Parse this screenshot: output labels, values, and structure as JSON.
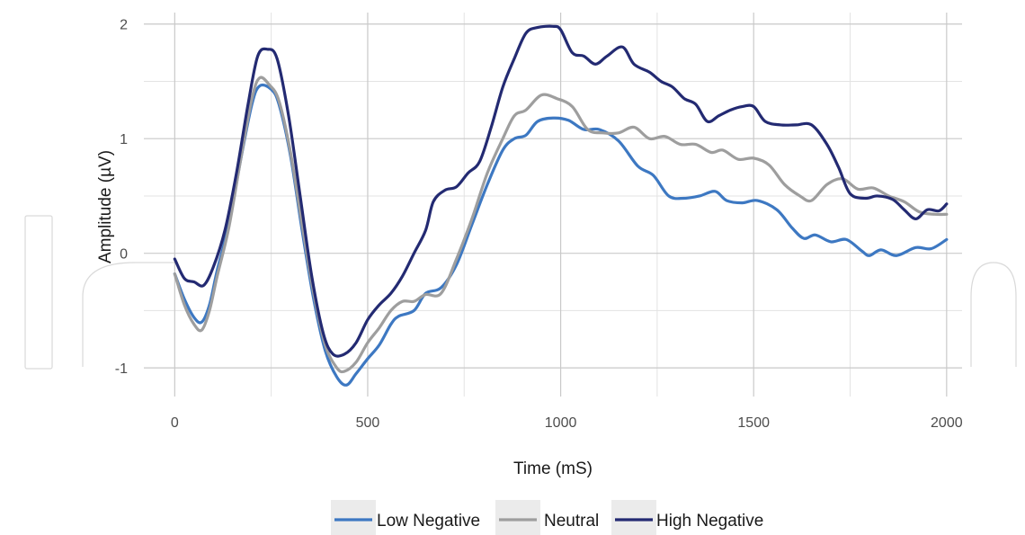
{
  "chart_data": {
    "type": "line",
    "xlabel": "Time (mS)",
    "ylabel": "Amplitude (µV)",
    "xlim": [
      -80,
      2040
    ],
    "ylim": [
      -1.25,
      2.1
    ],
    "x_ticks": [
      0,
      500,
      1000,
      1500,
      2000
    ],
    "x_tick_labels": [
      "0",
      "500",
      "1000",
      "1500",
      "2000"
    ],
    "y_ticks": [
      -1,
      0,
      1,
      2
    ],
    "y_tick_labels": [
      "-1",
      "0",
      "1",
      "2"
    ],
    "grid": true,
    "legend_position": "bottom",
    "series": [
      {
        "name": "Low Negative",
        "color": "#3d78c2",
        "points": [
          [
            0,
            -0.18
          ],
          [
            25,
            -0.4
          ],
          [
            50,
            -0.56
          ],
          [
            70,
            -0.6
          ],
          [
            90,
            -0.45
          ],
          [
            110,
            -0.15
          ],
          [
            140,
            0.25
          ],
          [
            170,
            0.8
          ],
          [
            200,
            1.3
          ],
          [
            220,
            1.46
          ],
          [
            250,
            1.43
          ],
          [
            270,
            1.3
          ],
          [
            300,
            0.85
          ],
          [
            330,
            0.2
          ],
          [
            360,
            -0.4
          ],
          [
            390,
            -0.85
          ],
          [
            420,
            -1.08
          ],
          [
            445,
            -1.15
          ],
          [
            470,
            -1.05
          ],
          [
            500,
            -0.92
          ],
          [
            530,
            -0.8
          ],
          [
            560,
            -0.62
          ],
          [
            580,
            -0.55
          ],
          [
            620,
            -0.5
          ],
          [
            650,
            -0.35
          ],
          [
            690,
            -0.3
          ],
          [
            730,
            -0.1
          ],
          [
            770,
            0.25
          ],
          [
            810,
            0.6
          ],
          [
            850,
            0.9
          ],
          [
            880,
            1.0
          ],
          [
            910,
            1.03
          ],
          [
            940,
            1.15
          ],
          [
            980,
            1.18
          ],
          [
            1020,
            1.16
          ],
          [
            1060,
            1.08
          ],
          [
            1100,
            1.08
          ],
          [
            1150,
            0.98
          ],
          [
            1200,
            0.76
          ],
          [
            1240,
            0.68
          ],
          [
            1280,
            0.5
          ],
          [
            1320,
            0.48
          ],
          [
            1360,
            0.5
          ],
          [
            1400,
            0.54
          ],
          [
            1430,
            0.46
          ],
          [
            1470,
            0.44
          ],
          [
            1510,
            0.46
          ],
          [
            1560,
            0.38
          ],
          [
            1600,
            0.22
          ],
          [
            1630,
            0.13
          ],
          [
            1660,
            0.16
          ],
          [
            1700,
            0.1
          ],
          [
            1740,
            0.12
          ],
          [
            1780,
            0.02
          ],
          [
            1800,
            -0.02
          ],
          [
            1830,
            0.03
          ],
          [
            1870,
            -0.02
          ],
          [
            1920,
            0.05
          ],
          [
            1960,
            0.04
          ],
          [
            2000,
            0.12
          ]
        ]
      },
      {
        "name": "Neutral",
        "color": "#9e9e9e",
        "points": [
          [
            0,
            -0.18
          ],
          [
            25,
            -0.45
          ],
          [
            50,
            -0.62
          ],
          [
            70,
            -0.67
          ],
          [
            90,
            -0.5
          ],
          [
            110,
            -0.2
          ],
          [
            140,
            0.22
          ],
          [
            170,
            0.8
          ],
          [
            200,
            1.35
          ],
          [
            220,
            1.53
          ],
          [
            245,
            1.47
          ],
          [
            270,
            1.33
          ],
          [
            300,
            0.88
          ],
          [
            330,
            0.25
          ],
          [
            360,
            -0.35
          ],
          [
            390,
            -0.8
          ],
          [
            420,
            -1.0
          ],
          [
            440,
            -1.03
          ],
          [
            470,
            -0.95
          ],
          [
            500,
            -0.78
          ],
          [
            530,
            -0.65
          ],
          [
            560,
            -0.5
          ],
          [
            590,
            -0.42
          ],
          [
            620,
            -0.42
          ],
          [
            650,
            -0.36
          ],
          [
            690,
            -0.35
          ],
          [
            730,
            -0.05
          ],
          [
            770,
            0.3
          ],
          [
            810,
            0.7
          ],
          [
            850,
            1.0
          ],
          [
            880,
            1.2
          ],
          [
            910,
            1.25
          ],
          [
            950,
            1.38
          ],
          [
            990,
            1.35
          ],
          [
            1030,
            1.28
          ],
          [
            1070,
            1.08
          ],
          [
            1110,
            1.05
          ],
          [
            1150,
            1.05
          ],
          [
            1190,
            1.1
          ],
          [
            1230,
            1.0
          ],
          [
            1270,
            1.02
          ],
          [
            1310,
            0.95
          ],
          [
            1350,
            0.95
          ],
          [
            1390,
            0.88
          ],
          [
            1420,
            0.9
          ],
          [
            1460,
            0.82
          ],
          [
            1500,
            0.83
          ],
          [
            1540,
            0.77
          ],
          [
            1580,
            0.6
          ],
          [
            1620,
            0.5
          ],
          [
            1650,
            0.46
          ],
          [
            1690,
            0.6
          ],
          [
            1730,
            0.65
          ],
          [
            1770,
            0.56
          ],
          [
            1810,
            0.57
          ],
          [
            1850,
            0.5
          ],
          [
            1890,
            0.45
          ],
          [
            1930,
            0.36
          ],
          [
            1970,
            0.34
          ],
          [
            2000,
            0.34
          ]
        ]
      },
      {
        "name": "High Negative",
        "color": "#232a72",
        "points": [
          [
            0,
            -0.05
          ],
          [
            25,
            -0.22
          ],
          [
            50,
            -0.25
          ],
          [
            75,
            -0.28
          ],
          [
            100,
            -0.12
          ],
          [
            130,
            0.2
          ],
          [
            160,
            0.7
          ],
          [
            190,
            1.3
          ],
          [
            215,
            1.72
          ],
          [
            240,
            1.78
          ],
          [
            265,
            1.7
          ],
          [
            295,
            1.2
          ],
          [
            325,
            0.5
          ],
          [
            355,
            -0.2
          ],
          [
            385,
            -0.7
          ],
          [
            410,
            -0.88
          ],
          [
            440,
            -0.88
          ],
          [
            470,
            -0.78
          ],
          [
            500,
            -0.58
          ],
          [
            530,
            -0.45
          ],
          [
            560,
            -0.35
          ],
          [
            590,
            -0.2
          ],
          [
            620,
            0.0
          ],
          [
            650,
            0.2
          ],
          [
            670,
            0.45
          ],
          [
            700,
            0.55
          ],
          [
            730,
            0.58
          ],
          [
            760,
            0.7
          ],
          [
            790,
            0.8
          ],
          [
            820,
            1.1
          ],
          [
            850,
            1.45
          ],
          [
            880,
            1.7
          ],
          [
            910,
            1.92
          ],
          [
            940,
            1.97
          ],
          [
            980,
            1.98
          ],
          [
            1000,
            1.95
          ],
          [
            1030,
            1.75
          ],
          [
            1060,
            1.72
          ],
          [
            1090,
            1.65
          ],
          [
            1120,
            1.72
          ],
          [
            1160,
            1.8
          ],
          [
            1190,
            1.65
          ],
          [
            1230,
            1.58
          ],
          [
            1260,
            1.5
          ],
          [
            1290,
            1.45
          ],
          [
            1320,
            1.35
          ],
          [
            1350,
            1.3
          ],
          [
            1380,
            1.15
          ],
          [
            1410,
            1.2
          ],
          [
            1440,
            1.25
          ],
          [
            1470,
            1.28
          ],
          [
            1500,
            1.28
          ],
          [
            1530,
            1.15
          ],
          [
            1570,
            1.12
          ],
          [
            1610,
            1.12
          ],
          [
            1650,
            1.12
          ],
          [
            1690,
            0.95
          ],
          [
            1720,
            0.75
          ],
          [
            1750,
            0.52
          ],
          [
            1790,
            0.48
          ],
          [
            1820,
            0.5
          ],
          [
            1860,
            0.47
          ],
          [
            1890,
            0.38
          ],
          [
            1920,
            0.3
          ],
          [
            1950,
            0.38
          ],
          [
            1980,
            0.37
          ],
          [
            2000,
            0.43
          ]
        ]
      }
    ]
  }
}
